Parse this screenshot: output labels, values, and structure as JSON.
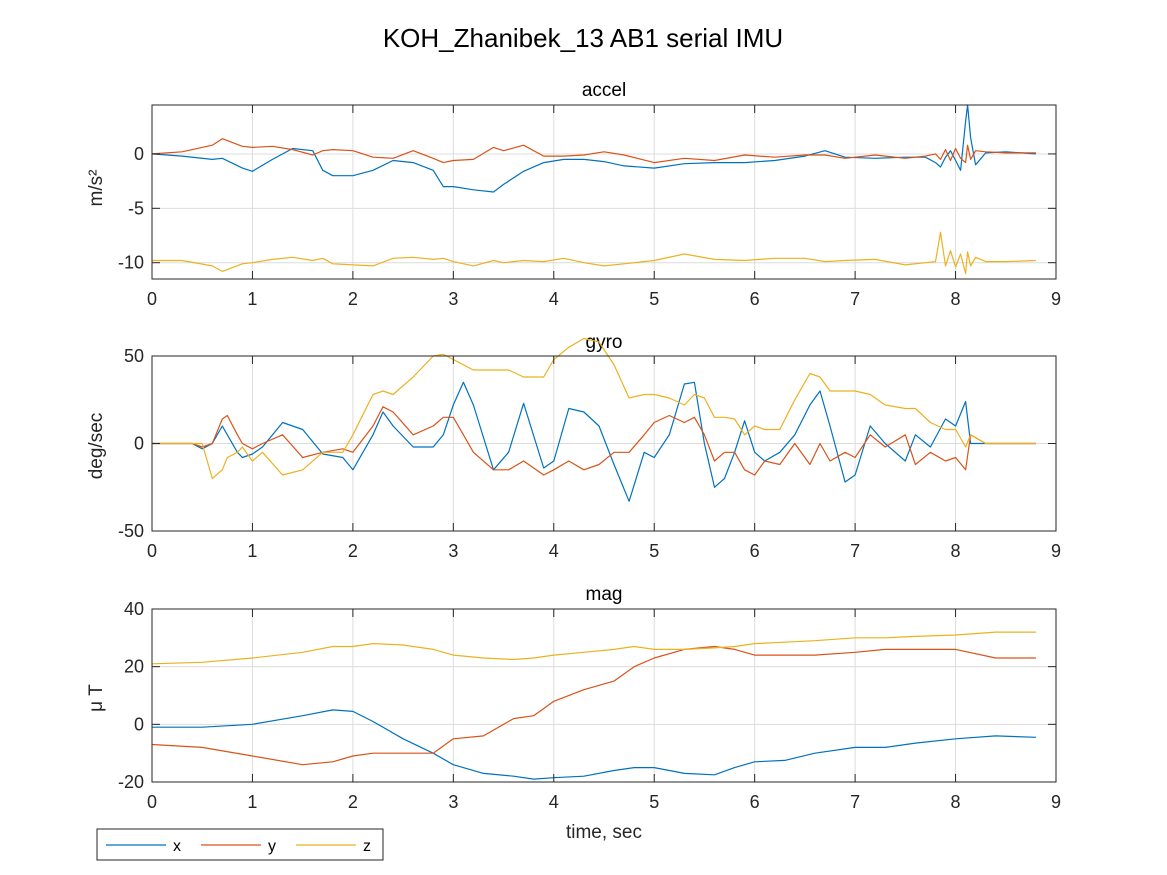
{
  "title": "KOH_Zhanibek_13 AB1 serial IMU",
  "colors": {
    "x": "#0072BD",
    "y": "#D95319",
    "z": "#EDB120",
    "grid": "#dcdcdc",
    "axis": "#262626"
  },
  "legend": {
    "placement": "bottom-left, outside",
    "entries": [
      "x",
      "y",
      "z"
    ]
  },
  "chart_data": [
    {
      "type": "line",
      "title": "accel",
      "ylabel": "m/s²",
      "xlabel": "",
      "xlim": [
        0,
        9
      ],
      "ylim": [
        -11.5,
        4.5
      ],
      "xticks": [
        0,
        1,
        2,
        3,
        4,
        5,
        6,
        7,
        8,
        9
      ],
      "yticks": [
        0,
        -5,
        -10
      ],
      "grid": true,
      "x": [
        0,
        0.3,
        0.6,
        0.7,
        0.9,
        1.0,
        1.2,
        1.4,
        1.6,
        1.7,
        1.8,
        2.0,
        2.2,
        2.4,
        2.6,
        2.8,
        2.9,
        3.0,
        3.2,
        3.4,
        3.5,
        3.7,
        3.9,
        4.1,
        4.3,
        4.5,
        4.7,
        5.0,
        5.3,
        5.6,
        5.9,
        6.2,
        6.5,
        6.7,
        6.9,
        7.2,
        7.5,
        7.7,
        7.8,
        7.85,
        7.9,
        7.95,
        8.0,
        8.05,
        8.1,
        8.12,
        8.15,
        8.2,
        8.3,
        8.5,
        8.8
      ],
      "series": [
        {
          "name": "x",
          "values": [
            0,
            -0.2,
            -0.5,
            -0.4,
            -1.3,
            -1.6,
            -0.5,
            0.5,
            0.3,
            -1.5,
            -2.0,
            -2.0,
            -1.5,
            -0.6,
            -0.8,
            -1.5,
            -3.0,
            -3.0,
            -3.3,
            -3.5,
            -2.8,
            -1.6,
            -0.8,
            -0.5,
            -0.5,
            -0.7,
            -1.1,
            -1.3,
            -0.9,
            -0.8,
            -0.8,
            -0.6,
            -0.2,
            0.3,
            -0.3,
            -0.4,
            -0.3,
            -0.3,
            -0.8,
            -1.2,
            -0.3,
            0.3,
            -0.6,
            -1.5,
            3.0,
            4.5,
            1.5,
            -1.0,
            0.1,
            0.2,
            0.0
          ]
        },
        {
          "name": "y",
          "values": [
            0,
            0.2,
            0.8,
            1.4,
            0.7,
            0.6,
            0.7,
            0.4,
            -0.1,
            0.3,
            0.4,
            0.3,
            -0.3,
            -0.4,
            0.3,
            -0.4,
            -0.8,
            -0.6,
            -0.5,
            0.6,
            0.3,
            0.8,
            -0.2,
            -0.2,
            -0.1,
            0.2,
            -0.1,
            -0.8,
            -0.4,
            -0.6,
            -0.1,
            -0.3,
            -0.1,
            -0.1,
            -0.4,
            -0.1,
            -0.4,
            -0.2,
            0.0,
            -0.5,
            0.4,
            -0.6,
            0.5,
            -0.4,
            -0.8,
            0.8,
            -0.5,
            0.3,
            0.2,
            0.1,
            0.1
          ]
        },
        {
          "name": "z",
          "values": [
            -9.8,
            -9.8,
            -10.3,
            -10.8,
            -10.1,
            -10.0,
            -9.7,
            -9.5,
            -9.8,
            -9.6,
            -10.1,
            -10.2,
            -10.3,
            -9.6,
            -9.5,
            -9.7,
            -9.6,
            -9.9,
            -10.3,
            -9.8,
            -10.0,
            -9.8,
            -9.9,
            -9.6,
            -10.0,
            -10.3,
            -10.1,
            -9.8,
            -9.2,
            -9.7,
            -9.8,
            -9.6,
            -9.6,
            -9.9,
            -9.8,
            -9.7,
            -10.2,
            -10.0,
            -9.9,
            -7.2,
            -10.3,
            -8.9,
            -10.4,
            -9.2,
            -11.0,
            -9.0,
            -10.3,
            -9.5,
            -9.9,
            -9.9,
            -9.8
          ]
        }
      ]
    },
    {
      "type": "line",
      "title": "gyro",
      "ylabel": "deg/sec",
      "xlabel": "",
      "xlim": [
        0,
        9
      ],
      "ylim": [
        -50,
        50
      ],
      "xticks": [
        0,
        1,
        2,
        3,
        4,
        5,
        6,
        7,
        8,
        9
      ],
      "yticks": [
        50,
        0,
        -50
      ],
      "grid": true,
      "x": [
        0,
        0.4,
        0.5,
        0.6,
        0.7,
        0.75,
        0.85,
        0.9,
        1.0,
        1.1,
        1.3,
        1.5,
        1.7,
        1.9,
        2.0,
        2.2,
        2.3,
        2.4,
        2.6,
        2.8,
        2.9,
        3.0,
        3.1,
        3.2,
        3.4,
        3.55,
        3.7,
        3.9,
        4.0,
        4.15,
        4.3,
        4.45,
        4.6,
        4.75,
        4.9,
        5.0,
        5.15,
        5.3,
        5.4,
        5.5,
        5.6,
        5.7,
        5.8,
        5.9,
        6.0,
        6.1,
        6.25,
        6.4,
        6.55,
        6.65,
        6.75,
        6.9,
        7.0,
        7.15,
        7.3,
        7.5,
        7.6,
        7.75,
        7.9,
        8.0,
        8.1,
        8.15,
        8.3,
        8.5,
        8.8
      ],
      "series": [
        {
          "name": "x",
          "values": [
            0,
            0,
            -3,
            0,
            10,
            5,
            -5,
            -8,
            -6,
            -2,
            12,
            8,
            -6,
            -8,
            -15,
            5,
            18,
            10,
            -2,
            -2,
            5,
            22,
            35,
            22,
            -15,
            -5,
            23,
            -14,
            -10,
            20,
            18,
            10,
            -12,
            -33,
            -5,
            -8,
            5,
            34,
            35,
            0,
            -25,
            -20,
            -5,
            13,
            -5,
            -10,
            -5,
            5,
            22,
            30,
            10,
            -22,
            -18,
            10,
            0,
            -10,
            5,
            -2,
            14,
            10,
            24,
            0,
            0,
            0,
            0
          ]
        },
        {
          "name": "y",
          "values": [
            0,
            0,
            -2,
            0,
            14,
            16,
            5,
            0,
            -3,
            0,
            5,
            -8,
            -5,
            -3,
            -5,
            10,
            21,
            18,
            5,
            10,
            15,
            15,
            5,
            -5,
            -15,
            -15,
            -10,
            -18,
            -15,
            -10,
            -15,
            -12,
            -5,
            -5,
            5,
            12,
            16,
            12,
            15,
            5,
            -10,
            -5,
            -5,
            -15,
            -18,
            -10,
            -12,
            0,
            -12,
            0,
            -10,
            -5,
            -8,
            5,
            -2,
            5,
            -12,
            -5,
            -10,
            -8,
            -15,
            5,
            0,
            0,
            0
          ]
        },
        {
          "name": "z",
          "values": [
            0,
            0,
            0,
            -20,
            -15,
            -8,
            -5,
            -2,
            -10,
            -5,
            -18,
            -15,
            -5,
            -5,
            5,
            28,
            30,
            28,
            38,
            50,
            51,
            48,
            45,
            42,
            42,
            42,
            38,
            38,
            48,
            55,
            60,
            58,
            45,
            26,
            28,
            28,
            26,
            22,
            28,
            26,
            15,
            15,
            14,
            5,
            10,
            8,
            8,
            25,
            40,
            38,
            30,
            30,
            30,
            28,
            22,
            20,
            20,
            12,
            8,
            8,
            -2,
            5,
            0,
            0,
            0
          ]
        }
      ]
    },
    {
      "type": "line",
      "title": "mag",
      "ylabel": "μ T",
      "xlabel": "time, sec",
      "xlim": [
        0,
        9
      ],
      "ylim": [
        -20,
        40
      ],
      "xticks": [
        0,
        1,
        2,
        3,
        4,
        5,
        6,
        7,
        8,
        9
      ],
      "yticks": [
        40,
        20,
        0,
        -20
      ],
      "grid": true,
      "x": [
        0,
        0.5,
        1.0,
        1.5,
        1.8,
        2.0,
        2.2,
        2.5,
        2.8,
        3.0,
        3.3,
        3.6,
        3.8,
        4.0,
        4.3,
        4.6,
        4.8,
        5.0,
        5.3,
        5.6,
        5.8,
        6.0,
        6.3,
        6.6,
        7.0,
        7.3,
        7.6,
        8.0,
        8.4,
        8.8
      ],
      "series": [
        {
          "name": "x",
          "values": [
            -1,
            -1,
            0,
            3,
            5,
            4.5,
            1,
            -5,
            -10,
            -14,
            -17,
            -18,
            -19,
            -18.5,
            -18,
            -16,
            -15,
            -15,
            -17,
            -17.5,
            -15,
            -13,
            -12.5,
            -10,
            -8,
            -8,
            -6.5,
            -5,
            -4,
            -4.5
          ]
        },
        {
          "name": "y",
          "values": [
            -7,
            -8,
            -11,
            -14,
            -13,
            -11,
            -10,
            -10,
            -10,
            -5,
            -4,
            2,
            3,
            8,
            12,
            15,
            20,
            23,
            26,
            27,
            26,
            24,
            24,
            24,
            25,
            26,
            26,
            26,
            23,
            23
          ]
        },
        {
          "name": "z",
          "values": [
            21,
            21.5,
            23,
            25,
            27,
            27,
            28,
            27.5,
            26,
            24,
            23,
            22.5,
            23,
            24,
            25,
            26,
            27,
            26,
            26,
            26.5,
            27,
            28,
            28.5,
            29,
            30,
            30,
            30.5,
            31,
            32,
            32
          ]
        }
      ]
    }
  ]
}
